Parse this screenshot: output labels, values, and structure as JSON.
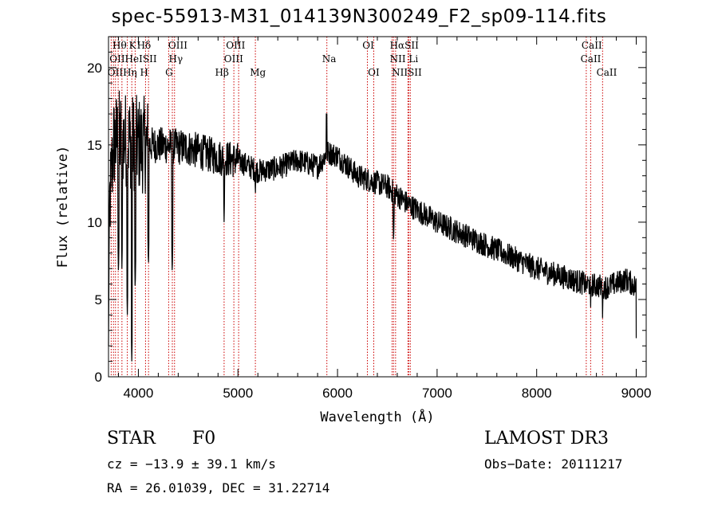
{
  "chart_data": {
    "type": "line",
    "title": "spec-55913-M31_014139N300249_F2_sp09-114.fits",
    "xlabel": "Wavelength (Å)",
    "ylabel": "Flux (relative)",
    "xlim": [
      3700,
      9100
    ],
    "ylim": [
      0,
      22
    ],
    "x_ticks": [
      4000,
      5000,
      6000,
      7000,
      8000,
      9000
    ],
    "y_ticks": [
      0,
      5,
      10,
      15,
      20
    ],
    "continuum_anchors": [
      [
        3700,
        10.0
      ],
      [
        3750,
        15.0
      ],
      [
        3800,
        15.5
      ],
      [
        3900,
        15.3
      ],
      [
        4000,
        15.0
      ],
      [
        4200,
        15.0
      ],
      [
        4500,
        14.8
      ],
      [
        4800,
        14.2
      ],
      [
        5000,
        14.0
      ],
      [
        5200,
        13.3
      ],
      [
        5400,
        13.5
      ],
      [
        5600,
        14.0
      ],
      [
        5800,
        13.6
      ],
      [
        5900,
        14.5
      ],
      [
        6000,
        14.3
      ],
      [
        6200,
        13.0
      ],
      [
        6500,
        12.3
      ],
      [
        6700,
        11.2
      ],
      [
        7000,
        10.0
      ],
      [
        7500,
        8.5
      ],
      [
        8000,
        7.0
      ],
      [
        8500,
        6.0
      ],
      [
        8700,
        5.8
      ],
      [
        8900,
        6.3
      ],
      [
        9000,
        5.8
      ]
    ],
    "absorption_features": [
      [
        3800,
        6.5
      ],
      [
        3835,
        7.0
      ],
      [
        3889,
        4.0
      ],
      [
        3934,
        1.0
      ],
      [
        3968,
        5.5
      ],
      [
        4101,
        7.0
      ],
      [
        4340,
        6.5
      ],
      [
        4861,
        10.0
      ],
      [
        5175,
        11.5
      ],
      [
        5893,
        13.0
      ],
      [
        6563,
        8.5
      ],
      [
        8498,
        5.5
      ],
      [
        8542,
        4.5
      ],
      [
        8662,
        3.8
      ]
    ],
    "emission_features": [
      [
        5890,
        17.0
      ]
    ],
    "line_markers": [
      {
        "wl": 3727,
        "label": "OII"
      },
      {
        "wl": 3750,
        "label": "OII"
      },
      {
        "wl": 3770,
        "label": "Hθ"
      },
      {
        "wl": 3797,
        "label": "Hη"
      },
      {
        "wl": 3835,
        "label": "Hη"
      },
      {
        "wl": 3889,
        "label": "HeI"
      },
      {
        "wl": 3934,
        "label": "K"
      },
      {
        "wl": 3968,
        "label": "H"
      },
      {
        "wl": 4072,
        "label": "SII"
      },
      {
        "wl": 4102,
        "label": "Hδ"
      },
      {
        "wl": 4304,
        "label": "G"
      },
      {
        "wl": 4341,
        "label": "Hγ"
      },
      {
        "wl": 4363,
        "label": "OIII"
      },
      {
        "wl": 4861,
        "label": "Hβ"
      },
      {
        "wl": 4959,
        "label": "OIII"
      },
      {
        "wl": 5007,
        "label": "OIII"
      },
      {
        "wl": 5175,
        "label": "Mg"
      },
      {
        "wl": 5893,
        "label": "Na"
      },
      {
        "wl": 6300,
        "label": "OI"
      },
      {
        "wl": 6364,
        "label": "OI"
      },
      {
        "wl": 6548,
        "label": "NII"
      },
      {
        "wl": 6563,
        "label": "Hα"
      },
      {
        "wl": 6583,
        "label": "NII"
      },
      {
        "wl": 6707,
        "label": "Li"
      },
      {
        "wl": 6716,
        "label": "SII"
      },
      {
        "wl": 6731,
        "label": "SII"
      },
      {
        "wl": 8498,
        "label": "CaII"
      },
      {
        "wl": 8542,
        "label": "CaII"
      },
      {
        "wl": 8662,
        "label": "CaII"
      }
    ],
    "label_rows": [
      {
        "text": "Hθ",
        "wl": 3740,
        "row": 0
      },
      {
        "text": "K",
        "wl": 3905,
        "row": 0
      },
      {
        "text": "Hδ",
        "wl": 3985,
        "row": 0
      },
      {
        "text": "OIII",
        "wl": 4300,
        "row": 0
      },
      {
        "text": "OIII",
        "wl": 4880,
        "row": 0
      },
      {
        "text": "OI",
        "wl": 6250,
        "row": 0
      },
      {
        "text": "HαSII",
        "wl": 6525,
        "row": 0
      },
      {
        "text": "CaII",
        "wl": 8450,
        "row": 0
      },
      {
        "text": "OIIHeISII",
        "wl": 3710,
        "row": 1
      },
      {
        "text": "Hγ",
        "wl": 4305,
        "row": 1
      },
      {
        "text": "OIII",
        "wl": 4860,
        "row": 1
      },
      {
        "text": "Na",
        "wl": 5845,
        "row": 1
      },
      {
        "text": "NII Li",
        "wl": 6525,
        "row": 1
      },
      {
        "text": "CaII",
        "wl": 8440,
        "row": 1
      },
      {
        "text": "OIIHη H",
        "wl": 3690,
        "row": 2
      },
      {
        "text": "G",
        "wl": 4270,
        "row": 2
      },
      {
        "text": "Hβ",
        "wl": 4770,
        "row": 2
      },
      {
        "text": "Mg",
        "wl": 5120,
        "row": 2
      },
      {
        "text": "OI",
        "wl": 6305,
        "row": 2
      },
      {
        "text": "NIISII",
        "wl": 6545,
        "row": 2
      },
      {
        "text": "CaII",
        "wl": 8600,
        "row": 2
      }
    ],
    "marker_color": "#cc0000",
    "line_color": "#000000"
  },
  "info": {
    "object_class": "STAR",
    "subclass": "F0",
    "survey": "LAMOST DR3",
    "cz": "cz = −13.9 ± 39.1 km/s",
    "obs_date": "Obs−Date: 20111217",
    "radec": "RA =  26.01039, DEC =  31.22714"
  }
}
